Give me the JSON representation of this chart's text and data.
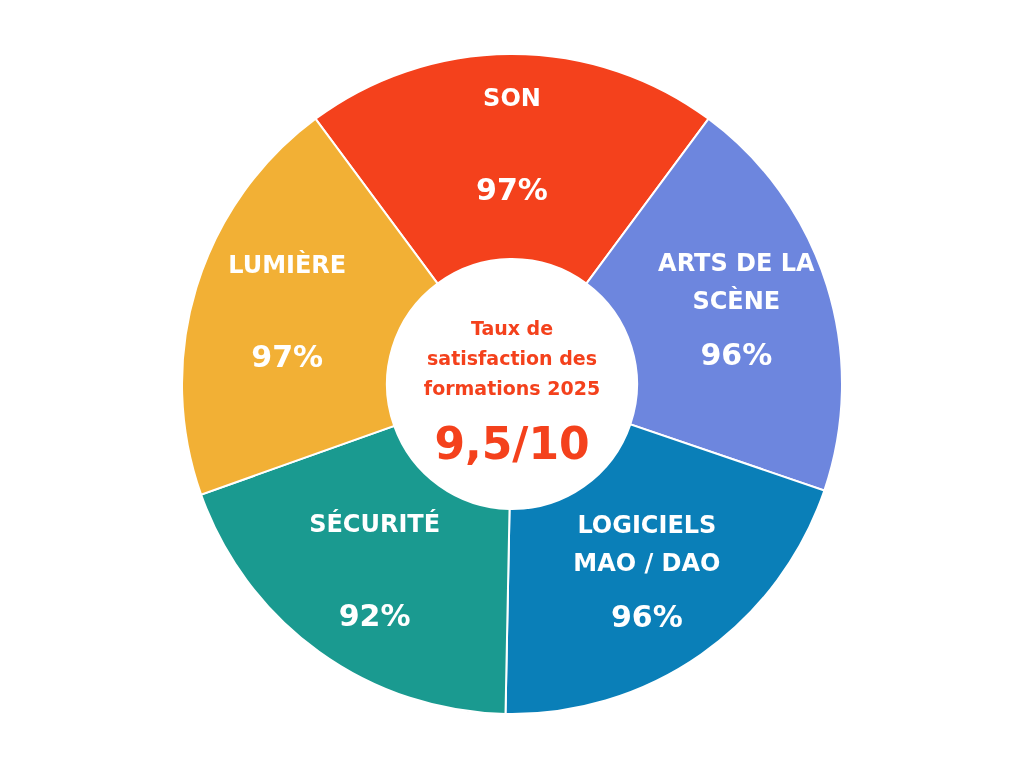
{
  "chart_data": {
    "type": "donut",
    "title": "Taux de satisfaction des formations 2025",
    "categories": [
      "SON",
      "ARTS DE LA SCÈNE",
      "LOGICIELS MAO / DAO",
      "SÉCURITÉ",
      "LUMIÈRE"
    ],
    "values": [
      97,
      96,
      96,
      92,
      97
    ],
    "value_labels": [
      "97%",
      "96%",
      "96%",
      "92%",
      "97%"
    ],
    "colors": [
      "#f4411c",
      "#6d86de",
      "#0a7fb8",
      "#1a9a90",
      "#f2b035"
    ],
    "annotations": [
      "9,5/10"
    ]
  }
}
